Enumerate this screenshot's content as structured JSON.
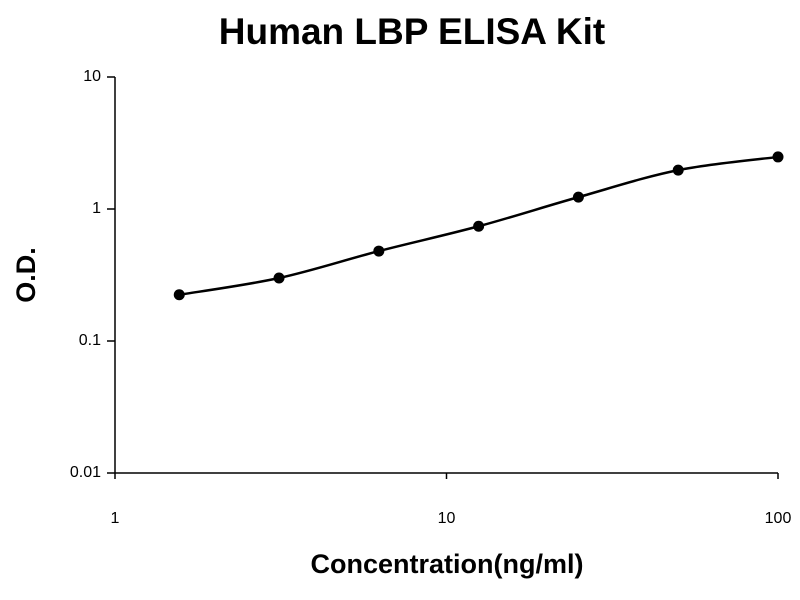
{
  "chart_data": {
    "type": "scatter",
    "title": "Human LBP ELISA Kit",
    "xlabel": "Concentration(ng/ml)",
    "ylabel": "O.D.",
    "x": [
      1.5625,
      3.125,
      6.25,
      12.5,
      25,
      50,
      100
    ],
    "values": [
      0.224,
      0.3,
      0.48,
      0.74,
      1.23,
      1.97,
      2.48
    ],
    "color": "#000000",
    "curve": "smooth",
    "xscale": "log",
    "yscale": "log",
    "xlim": [
      1,
      100
    ],
    "xticks": [
      1,
      10,
      100
    ],
    "ylim": [
      0.01,
      10
    ],
    "yticks": [
      0.01,
      0.1,
      1,
      10
    ],
    "grid": false
  }
}
